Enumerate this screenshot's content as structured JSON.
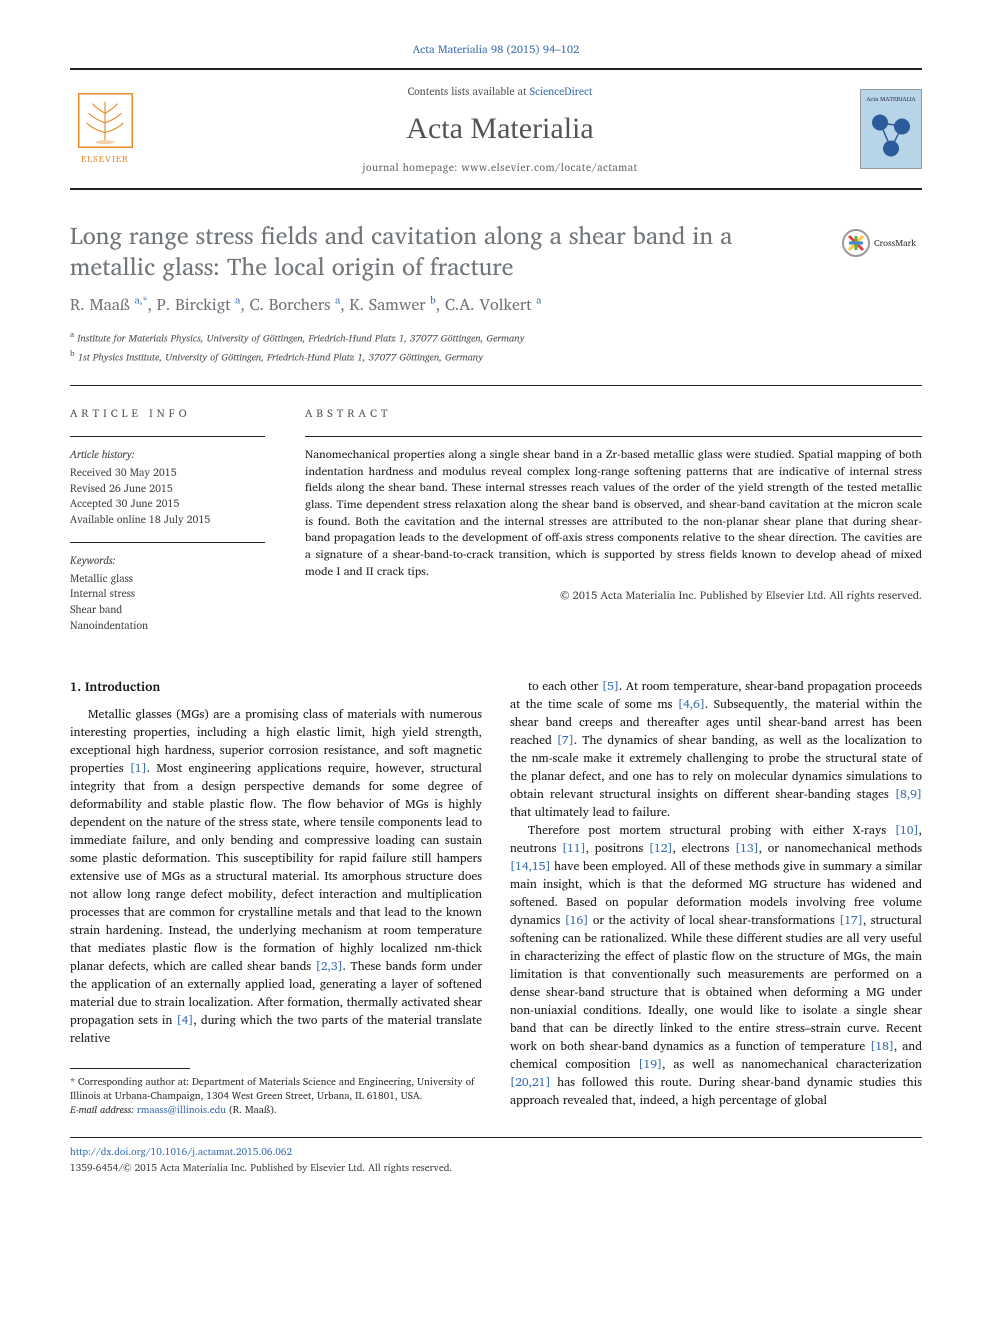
{
  "journal_ref": "Acta Materialia 98 (2015) 94–102",
  "header": {
    "elsevier": "ELSEVIER",
    "contents_text": "Contents lists available at ",
    "contents_link": "ScienceDirect",
    "journal_title": "Acta Materialia",
    "homepage_text": "journal homepage: www.elsevier.com/locate/actamat",
    "cover_label": "Acta MATERIALIA"
  },
  "article": {
    "crossmark": "CrossMark",
    "title": "Long range stress fields and cavitation along a shear band in a metallic glass: The local origin of fracture",
    "authors_html": "R. Maaß <sup>a,*</sup>, P. Birckigt <sup>a</sup>, C. Borchers <sup>a</sup>, K. Samwer <sup>b</sup>, C.A. Volkert <sup>a</sup>",
    "affiliations": {
      "a": "Institute for Materials Physics, University of Göttingen, Friedrich-Hund Platz 1, 37077 Göttingen, Germany",
      "b": "1st Physics Institute, University of Göttingen, Friedrich-Hund Platz 1, 37077 Göttingen, Germany"
    }
  },
  "info": {
    "label": "ARTICLE INFO",
    "history_label": "Article history:",
    "history": [
      "Received 30 May 2015",
      "Revised 26 June 2015",
      "Accepted 30 June 2015",
      "Available online 18 July 2015"
    ],
    "keywords_label": "Keywords:",
    "keywords": [
      "Metallic glass",
      "Internal stress",
      "Shear band",
      "Nanoindentation"
    ]
  },
  "abstract": {
    "label": "ABSTRACT",
    "text": "Nanomechanical properties along a single shear band in a Zr-based metallic glass were studied. Spatial mapping of both indentation hardness and modulus reveal complex long-range softening patterns that are indicative of internal stress fields along the shear band. These internal stresses reach values of the order of the yield strength of the tested metallic glass. Time dependent stress relaxation along the shear band is observed, and shear-band cavitation at the micron scale is found. Both the cavitation and the internal stresses are attributed to the non-planar shear plane that during shear-band propagation leads to the development of off-axis stress components relative to the shear direction. The cavities are a signature of a shear-band-to-crack transition, which is supported by stress fields known to develop ahead of mixed mode I and II crack tips.",
    "copyright": "© 2015 Acta Materialia Inc. Published by Elsevier Ltd. All rights reserved."
  },
  "body": {
    "intro_heading": "1. Introduction",
    "left_para": "Metallic glasses (MGs) are a promising class of materials with numerous interesting properties, including a high elastic limit, high yield strength, exceptional high hardness, superior corrosion resistance, and soft magnetic properties [1]. Most engineering applications require, however, structural integrity that from a design perspective demands for some degree of deformability and stable plastic flow. The flow behavior of MGs is highly dependent on the nature of the stress state, where tensile components lead to immediate failure, and only bending and compressive loading can sustain some plastic deformation. This susceptibility for rapid failure still hampers extensive use of MGs as a structural material. Its amorphous structure does not allow long range defect mobility, defect interaction and multiplication processes that are common for crystalline metals and that lead to the known strain hardening. Instead, the underlying mechanism at room temperature that mediates plastic flow is the formation of highly localized nm-thick planar defects, which are called shear bands [2,3]. These bands form under the application of an externally applied load, generating a layer of softened material due to strain localization. After formation, thermally activated shear propagation sets in [4], during which the two parts of the material translate relative",
    "right_para1": "to each other [5]. At room temperature, shear-band propagation proceeds at the time scale of some ms [4,6]. Subsequently, the material within the shear band creeps and thereafter ages until shear-band arrest has been reached [7]. The dynamics of shear banding, as well as the localization to the nm-scale make it extremely challenging to probe the structural state of the planar defect, and one has to rely on molecular dynamics simulations to obtain relevant structural insights on different shear-banding stages [8,9] that ultimately lead to failure.",
    "right_para2": "Therefore post mortem structural probing with either X-rays [10], neutrons [11], positrons [12], electrons [13], or nanomechanical methods [14,15] have been employed. All of these methods give in summary a similar main insight, which is that the deformed MG structure has widened and softened. Based on popular deformation models involving free volume dynamics [16] or the activity of local shear-transformations [17], structural softening can be rationalized. While these different studies are all very useful in characterizing the effect of plastic flow on the structure of MGs, the main limitation is that conventionally such measurements are performed on a dense shear-band structure that is obtained when deforming a MG under non-uniaxial conditions. Ideally, one would like to isolate a single shear band that can be directly linked to the entire stress–strain curve. Recent work on both shear-band dynamics as a function of temperature [18], and chemical composition [19], as well as nanomechanical characterization [20,21] has followed this route. During shear-band dynamic studies this approach revealed that, indeed, a high percentage of global"
  },
  "footnote": {
    "corresponding": "* Corresponding author at: Department of Materials Science and Engineering, University of Illinois at Urbana-Champaign, 1304 West Green Street, Urbana, IL 61801, USA.",
    "email_label": "E-mail address:",
    "email": "rmaass@illinois.edu",
    "email_name": "(R. Maaß)."
  },
  "bottom": {
    "doi": "http://dx.doi.org/10.1016/j.actamat.2015.06.062",
    "issn_line": "1359-6454/© 2015 Acta Materialia Inc. Published by Elsevier Ltd. All rights reserved."
  },
  "colors": {
    "link": "#3b6db0",
    "muted": "#71767b",
    "orange": "#e98b2c"
  }
}
